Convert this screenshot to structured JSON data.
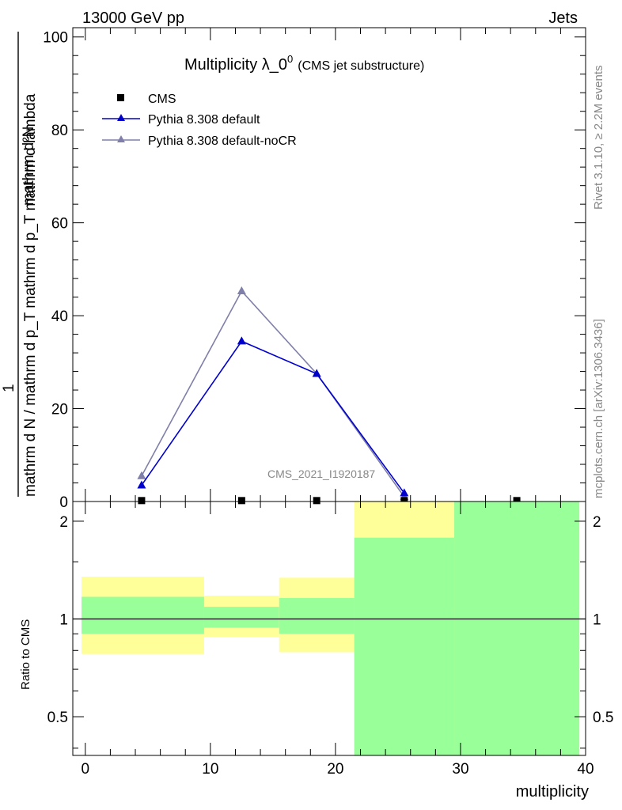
{
  "header": {
    "left": "13000 GeV pp",
    "right": "Jets"
  },
  "side_labels": {
    "rivet": "Rivet 3.1.10, ≥ 2.2M events",
    "mcplots": "mcplots.cern.ch [arXiv:1306.3436]"
  },
  "chart_data": {
    "type": "line",
    "title": "Multiplicity λ_0",
    "title_superscript": "0",
    "subtitle": "(CMS jet substructure)",
    "watermark": "CMS_2021_I1920187",
    "xlabel": "multiplicity",
    "ylabel": {
      "numerator": "mathrm d²N",
      "denominator": "mathrm d N / mathrm d p_T mathrm d p_T mathrm d lambda",
      "one": "1"
    },
    "xlim": [
      -1,
      40
    ],
    "ylim": [
      0,
      102
    ],
    "x_ticks": [
      0,
      10,
      20,
      30,
      40
    ],
    "y_ticks": [
      0,
      20,
      40,
      60,
      80,
      100
    ],
    "legend_position": "top-left",
    "colors": {
      "cms": "#000000",
      "default": "#0000cc",
      "noCR": "#7f7faa",
      "band_outer": "#ffff99",
      "band_inner": "#99ff99"
    },
    "series": [
      {
        "name": "CMS",
        "marker": "square",
        "x": [
          4.5,
          12.5,
          18.5,
          25.5,
          34.5
        ],
        "y": [
          0.2,
          0.2,
          0.2,
          0.2,
          0.2
        ]
      },
      {
        "name": "Pythia 8.308 default",
        "marker": "triangle",
        "x": [
          4.5,
          12.5,
          18.5,
          25.5
        ],
        "y": [
          3.5,
          34.5,
          27.5,
          1.8
        ]
      },
      {
        "name": "Pythia 8.308 default-noCR",
        "marker": "triangle",
        "x": [
          4.5,
          12.5,
          18.5,
          25.5
        ],
        "y": [
          5.5,
          45.3,
          27.5,
          1.0
        ]
      }
    ],
    "ratio": {
      "ylabel": "Ratio to CMS",
      "scale": "log",
      "ylim": [
        0.38,
        2.3
      ],
      "y_ticks": [
        0.5,
        1,
        2
      ],
      "reference": 1,
      "bins": [
        {
          "x0": -1,
          "x1": 9.5,
          "outer": [
            0.78,
            1.35
          ],
          "inner": [
            0.9,
            1.17
          ]
        },
        {
          "x0": 9.5,
          "x1": 15.5,
          "outer": [
            0.88,
            1.18
          ],
          "inner": [
            0.94,
            1.09
          ]
        },
        {
          "x0": 15.5,
          "x1": 21.5,
          "outer": [
            0.79,
            1.34
          ],
          "inner": [
            0.9,
            1.16
          ]
        },
        {
          "x0": 21.5,
          "x1": 29.5,
          "outer": [
            0.38,
            2.3
          ],
          "inner": [
            0.38,
            1.78
          ]
        },
        {
          "x0": 29.5,
          "x1": 39.5,
          "outer": [
            0.38,
            2.3
          ],
          "inner": [
            0.38,
            2.3
          ]
        }
      ]
    }
  }
}
